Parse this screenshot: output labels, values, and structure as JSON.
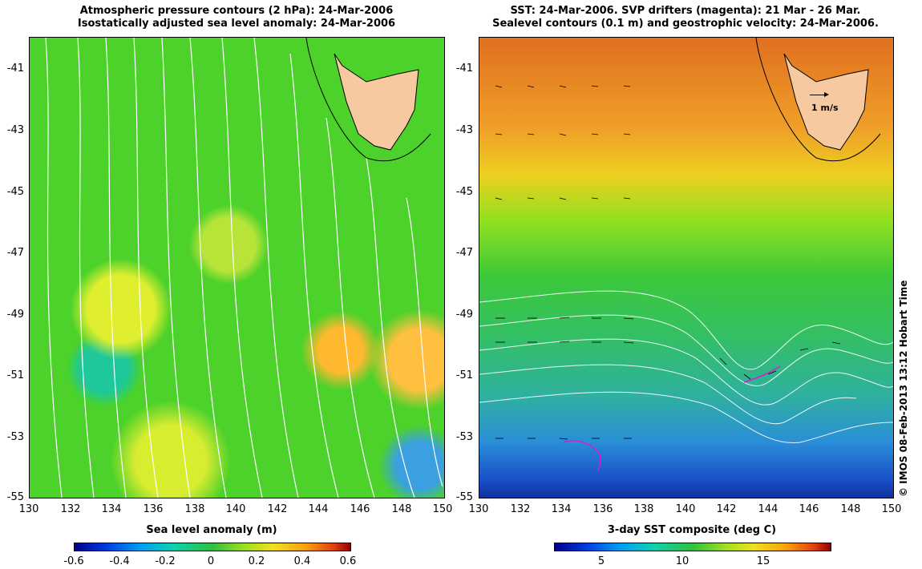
{
  "left_panel": {
    "title_line1": "Atmospheric pressure contours (2 hPa): 24-Mar-2006",
    "title_line2": "Isostatically adjusted sea level anomaly: 24-Mar-2006",
    "colorbar_label": "Sea level anomaly (m)",
    "colorbar_ticks": [
      "-0.6",
      "-0.4",
      "-0.2",
      "0",
      "0.2",
      "0.4",
      "0.6"
    ]
  },
  "right_panel": {
    "title_line1": "SST: 24-Mar-2006. SVP drifters (magenta): 21 Mar - 26 Mar.",
    "title_line2": "Sealevel contours (0.1 m) and geostrophic velocity: 24-Mar-2006.",
    "colorbar_label": "3-day SST composite (deg C)",
    "colorbar_ticks": [
      "5",
      "10",
      "15"
    ],
    "scale_label": "1 m/s"
  },
  "y_ticks": [
    "-41",
    "-43",
    "-45",
    "-47",
    "-49",
    "-51",
    "-53",
    "-55"
  ],
  "x_ticks": [
    "130",
    "132",
    "134",
    "136",
    "138",
    "140",
    "142",
    "144",
    "146",
    "148",
    "150"
  ],
  "copyright": "© IMOS 08-Feb-2013 13:12 Hobart Time",
  "colors": {
    "land": "#f7c9a0",
    "contour": "#ffffff",
    "coast": "#000000",
    "drifter": "#d020d0"
  }
}
